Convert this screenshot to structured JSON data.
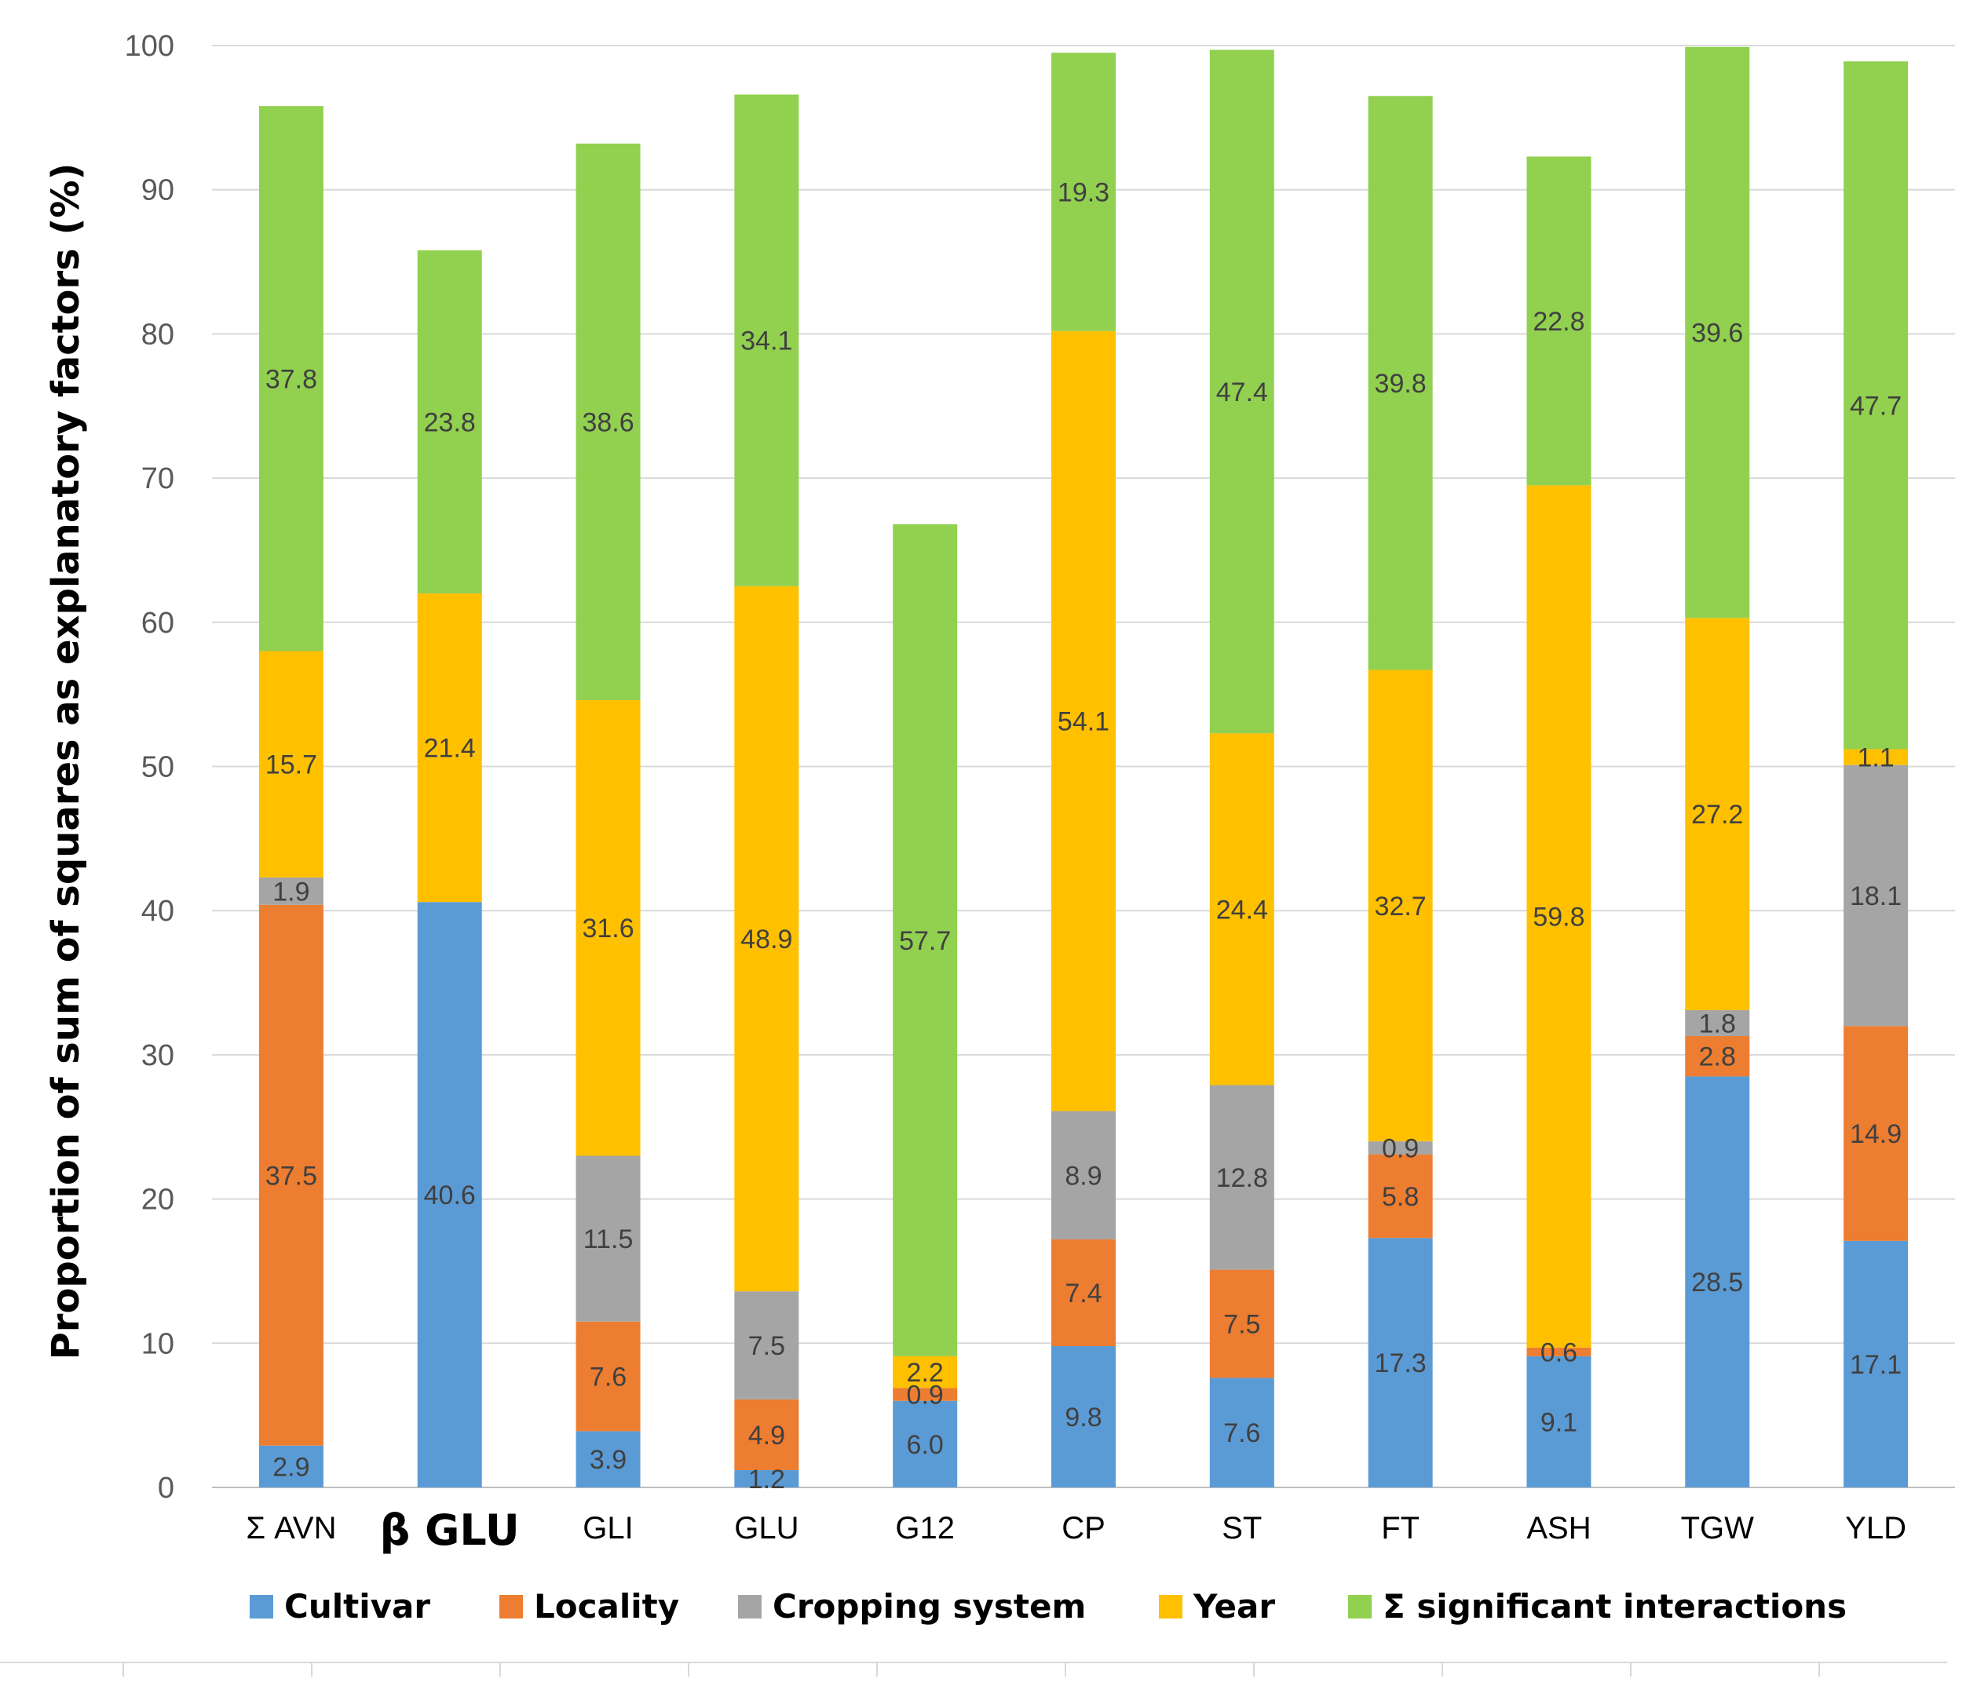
{
  "chart_data": {
    "type": "bar",
    "stacked": true,
    "title": "",
    "xlabel": "",
    "ylabel": "Proportion of sum of squares as explanatory factors (%)",
    "ylim": [
      0,
      100
    ],
    "yticks": [
      0,
      10,
      20,
      30,
      40,
      50,
      60,
      70,
      80,
      90,
      100
    ],
    "grid": true,
    "legend_position": "bottom",
    "categories": [
      "Σ AVN",
      "β GLU",
      "GLI",
      "GLU",
      "G12",
      "CP",
      "ST",
      "FT",
      "ASH",
      "TGW",
      "YLD"
    ],
    "emphasized_category": "β GLU",
    "series": [
      {
        "name": "Cultivar",
        "color": "#5B9BD5",
        "values": [
          2.9,
          40.6,
          3.9,
          1.2,
          6.0,
          9.8,
          7.6,
          17.3,
          9.1,
          28.5,
          17.1
        ],
        "labels": [
          "2.9",
          "40.6",
          "3.9",
          "1.2",
          "6.0",
          "9.8",
          "7.6",
          "17.3",
          "9.1",
          "28.5",
          "17.1"
        ]
      },
      {
        "name": "Locality",
        "color": "#ED7D31",
        "values": [
          37.5,
          null,
          7.6,
          4.9,
          0.9,
          7.4,
          7.5,
          5.8,
          0.6,
          2.8,
          14.9
        ],
        "labels": [
          "37.5",
          null,
          "7.6",
          "4.9",
          "0.9",
          "7.4",
          "7.5",
          "5.8",
          "0.6",
          "2.8",
          "14.9"
        ]
      },
      {
        "name": "Cropping system",
        "color": "#A5A5A5",
        "values": [
          1.9,
          null,
          11.5,
          7.5,
          null,
          8.9,
          12.8,
          0.9,
          null,
          1.8,
          18.1
        ],
        "labels": [
          "1.9",
          null,
          "11.5",
          "7.5",
          null,
          "8.9",
          "12.8",
          "0.9",
          null,
          "1.8",
          "18.1"
        ]
      },
      {
        "name": "Year",
        "color": "#FFC000",
        "values": [
          15.7,
          21.4,
          31.6,
          48.9,
          2.2,
          54.1,
          24.4,
          32.7,
          59.8,
          27.2,
          1.1
        ],
        "labels": [
          "15.7",
          "21.4",
          "31.6",
          "48.9",
          "2.2",
          "54.1",
          "24.4",
          "32.7",
          "59.8",
          "27.2",
          "1.1"
        ]
      },
      {
        "name": "Σ significant interactions",
        "color": "#92D050",
        "values": [
          37.8,
          23.8,
          38.6,
          34.1,
          57.7,
          19.3,
          47.4,
          39.8,
          22.8,
          39.6,
          47.7
        ],
        "labels": [
          "37.8",
          "23.8",
          "38.6",
          "34.1",
          "57.7",
          "19.3",
          "47.4",
          "39.8",
          "22.8",
          "39.6",
          "47.7"
        ]
      }
    ]
  }
}
